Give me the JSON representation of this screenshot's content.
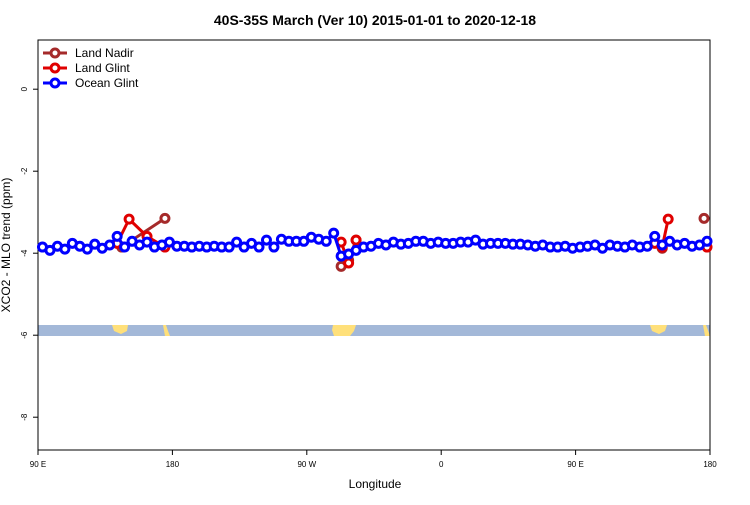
{
  "chart_data": {
    "type": "line",
    "title": "40S-35S March (Ver 10)   2015-01-01 to 2020-12-18",
    "x_label": "Longitude",
    "y_label": "XCO2 - MLO trend (ppm)",
    "xlim": [
      90,
      540
    ],
    "ylim": [
      -8.8,
      1.2
    ],
    "xticks": [
      {
        "value": 90,
        "label": "90 E"
      },
      {
        "value": 180,
        "label": "180"
      },
      {
        "value": 270,
        "label": "90 W"
      },
      {
        "value": 360,
        "label": "0"
      },
      {
        "value": 450,
        "label": "90 E"
      },
      {
        "value": 540,
        "label": "180"
      }
    ],
    "yticks": [
      0,
      -2,
      -4,
      -6,
      -8
    ],
    "legend": "top-left",
    "series": [
      {
        "name": "Land Nadir",
        "color": "#a52a2a",
        "x": [
          146,
          175,
          null,
          293,
          298,
          303,
          null,
          508,
          null,
          536
        ],
        "values": [
          -3.85,
          -3.15,
          null,
          -4.32,
          -4.17,
          -3.68,
          null,
          -3.88,
          null,
          -3.15
        ]
      },
      {
        "name": "Land Glint",
        "color": "#e00000",
        "x": [
          143,
          151,
          163,
          175,
          null,
          293,
          298,
          303,
          null,
          503,
          508,
          512,
          null,
          538
        ],
        "values": [
          -3.76,
          -3.17,
          -3.59,
          -3.85,
          null,
          -3.73,
          -4.24,
          -3.68,
          null,
          -3.76,
          -3.85,
          -3.17,
          null,
          -3.85
        ]
      },
      {
        "name": "Ocean Glint",
        "color": "#0000ff",
        "x": [
          93,
          98,
          103,
          108,
          113,
          118,
          123,
          128,
          133,
          138,
          143,
          148,
          153,
          158,
          163,
          168,
          173,
          178,
          183,
          188,
          193,
          198,
          203,
          208,
          213,
          218,
          223,
          228,
          233,
          238,
          243,
          248,
          253,
          258,
          263,
          268,
          273,
          278,
          283,
          288,
          293,
          298,
          303,
          308,
          313,
          318,
          323,
          328,
          333,
          338,
          343,
          348,
          353,
          358,
          363,
          368,
          373,
          378,
          383,
          388,
          393,
          398,
          403,
          408,
          413,
          418,
          423,
          428,
          433,
          438,
          443,
          448,
          453,
          458,
          463,
          468,
          473,
          478,
          483,
          488,
          493,
          498,
          503,
          508,
          513,
          518,
          523,
          528,
          533,
          538
        ],
        "values": [
          -3.85,
          -3.93,
          -3.83,
          -3.9,
          -3.76,
          -3.83,
          -3.9,
          -3.78,
          -3.88,
          -3.8,
          -3.59,
          -3.85,
          -3.71,
          -3.8,
          -3.73,
          -3.85,
          -3.8,
          -3.73,
          -3.83,
          -3.83,
          -3.85,
          -3.83,
          -3.85,
          -3.83,
          -3.85,
          -3.85,
          -3.73,
          -3.85,
          -3.76,
          -3.85,
          -3.68,
          -3.85,
          -3.66,
          -3.71,
          -3.71,
          -3.71,
          -3.61,
          -3.66,
          -3.71,
          -3.51,
          -4.07,
          -4.02,
          -3.93,
          -3.85,
          -3.83,
          -3.76,
          -3.8,
          -3.73,
          -3.78,
          -3.76,
          -3.71,
          -3.71,
          -3.76,
          -3.73,
          -3.76,
          -3.76,
          -3.73,
          -3.73,
          -3.68,
          -3.78,
          -3.76,
          -3.76,
          -3.76,
          -3.78,
          -3.78,
          -3.8,
          -3.83,
          -3.8,
          -3.85,
          -3.85,
          -3.83,
          -3.88,
          -3.85,
          -3.83,
          -3.8,
          -3.88,
          -3.8,
          -3.83,
          -3.85,
          -3.8,
          -3.85,
          -3.83,
          -3.59,
          -3.8,
          -3.71,
          -3.8,
          -3.76,
          -3.83,
          -3.8,
          -3.71
        ]
      }
    ]
  }
}
